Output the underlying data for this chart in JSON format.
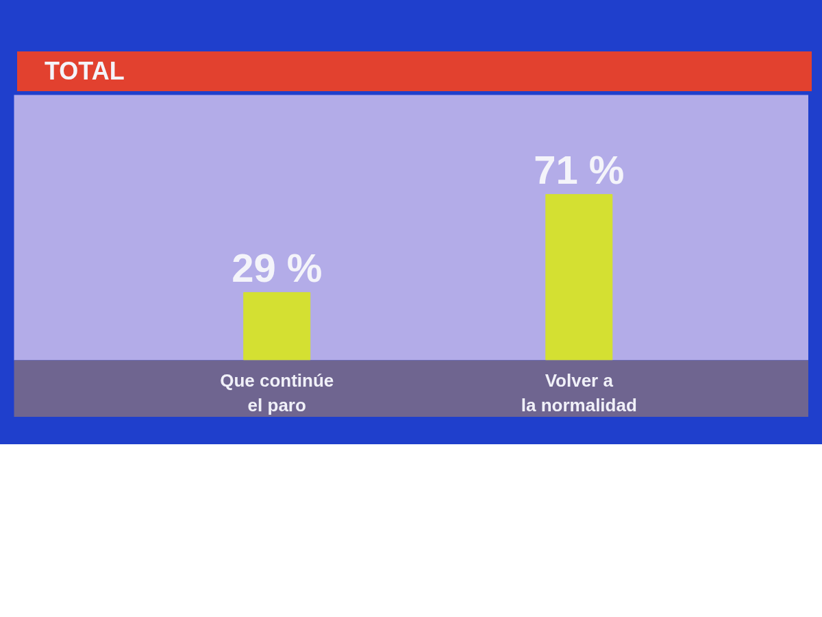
{
  "chart_data": {
    "type": "bar",
    "title": "TOTAL",
    "categories": [
      "Que continúe\nel paro",
      "Volver a\nla normalidad"
    ],
    "values": [
      29,
      71
    ],
    "color": "#d4e032",
    "value_labels": [
      "29 %",
      "71 %"
    ]
  }
}
